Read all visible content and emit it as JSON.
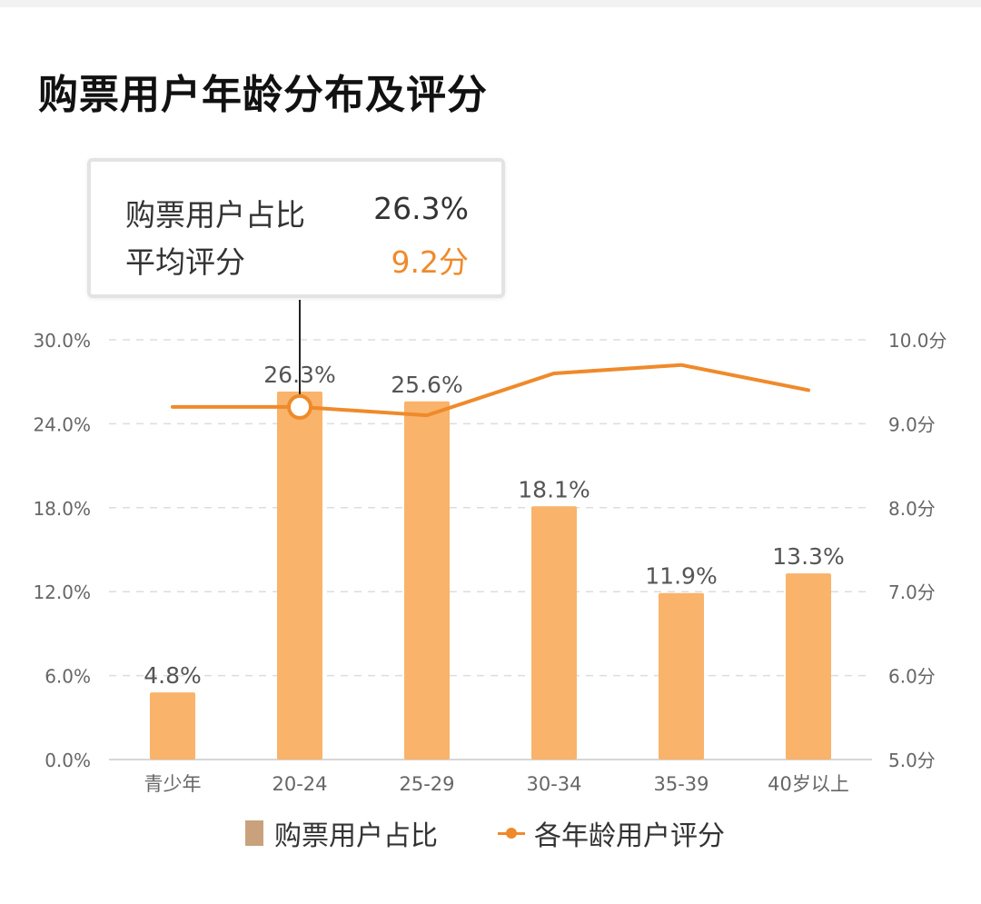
{
  "title": "购票用户年龄分布及评分",
  "tooltip": {
    "row1_label": "购票用户占比",
    "row1_value": "26.3%",
    "row2_label": "平均评分",
    "row2_value": "9.2分"
  },
  "legend": {
    "bar_label": "购票用户占比",
    "line_label": "各年龄用户评分"
  },
  "colors": {
    "bar": "#f9b36b",
    "line": "#ef8a2b",
    "bar_legend": "#c9a27d",
    "axis_text": "#666666",
    "label_text": "#555555"
  },
  "chart_data": {
    "type": "bar",
    "title": "购票用户年龄分布及评分",
    "categories": [
      "青少年",
      "20-24",
      "25-29",
      "30-34",
      "35-39",
      "40岁以上"
    ],
    "series": [
      {
        "name": "购票用户占比",
        "type": "bar",
        "axis": "left",
        "values": [
          4.8,
          26.3,
          25.6,
          18.1,
          11.9,
          13.3
        ],
        "labels": [
          "4.8%",
          "26.3%",
          "25.6%",
          "18.1%",
          "11.9%",
          "13.3%"
        ]
      },
      {
        "name": "各年龄用户评分",
        "type": "line",
        "axis": "right",
        "values": [
          9.2,
          9.2,
          9.1,
          9.6,
          9.7,
          9.4
        ]
      }
    ],
    "left_axis": {
      "min": 0,
      "max": 30,
      "ticks": [
        0,
        6,
        12,
        18,
        24,
        30
      ],
      "tick_labels": [
        "0.0%",
        "6.0%",
        "12.0%",
        "18.0%",
        "24.0%",
        "30.0%"
      ]
    },
    "right_axis": {
      "min": 5,
      "max": 10,
      "ticks": [
        5,
        6,
        7,
        8,
        9,
        10
      ],
      "tick_labels": [
        "5.0分",
        "6.0分",
        "7.0分",
        "8.0分",
        "9.0分",
        "10.0分"
      ]
    },
    "highlight_index": 1,
    "grid": true,
    "legend_position": "bottom"
  }
}
